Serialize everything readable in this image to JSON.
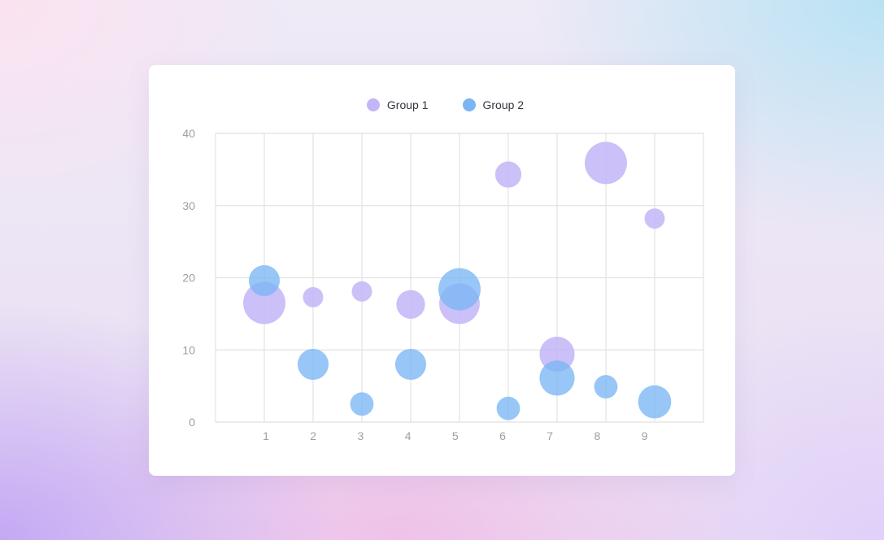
{
  "colors": {
    "group1": "#c3b5f7",
    "group2": "#7ab6f5",
    "grid": "#e3e3e3",
    "tick_text": "#9aa0a6"
  },
  "legend": {
    "placement": "top-center",
    "items": [
      {
        "label": "Group 1",
        "color": "#c3b5f7"
      },
      {
        "label": "Group 2",
        "color": "#7ab6f5"
      }
    ]
  },
  "chart_data": {
    "type": "scatter",
    "title": "",
    "xlabel": "",
    "ylabel": "",
    "xlim": [
      0,
      10
    ],
    "ylim": [
      0,
      40
    ],
    "x_ticks": [
      1,
      2,
      3,
      4,
      5,
      6,
      7,
      8,
      9
    ],
    "y_ticks": [
      0,
      10,
      20,
      30,
      40
    ],
    "grid": true,
    "bubble": true,
    "series": [
      {
        "name": "Group 1",
        "color": "#c3b5f7",
        "points": [
          {
            "x": 1,
            "y": 16.5,
            "size": 13
          },
          {
            "x": 2,
            "y": 17.3,
            "size": 3
          },
          {
            "x": 3,
            "y": 18.1,
            "size": 3
          },
          {
            "x": 4,
            "y": 16.3,
            "size": 6
          },
          {
            "x": 5,
            "y": 16.4,
            "size": 12
          },
          {
            "x": 6,
            "y": 34.3,
            "size": 5
          },
          {
            "x": 7,
            "y": 9.4,
            "size": 9
          },
          {
            "x": 8,
            "y": 35.9,
            "size": 13
          },
          {
            "x": 9,
            "y": 28.2,
            "size": 3
          }
        ]
      },
      {
        "name": "Group 2",
        "color": "#7ab6f5",
        "points": [
          {
            "x": 1,
            "y": 19.6,
            "size": 7
          },
          {
            "x": 2,
            "y": 8.0,
            "size": 7
          },
          {
            "x": 3,
            "y": 2.5,
            "size": 4
          },
          {
            "x": 4,
            "y": 8.0,
            "size": 7
          },
          {
            "x": 5,
            "y": 18.4,
            "size": 13
          },
          {
            "x": 6,
            "y": 1.9,
            "size": 4
          },
          {
            "x": 7,
            "y": 6.1,
            "size": 9
          },
          {
            "x": 8,
            "y": 4.9,
            "size": 4
          },
          {
            "x": 9,
            "y": 2.8,
            "size": 8
          }
        ]
      }
    ]
  }
}
